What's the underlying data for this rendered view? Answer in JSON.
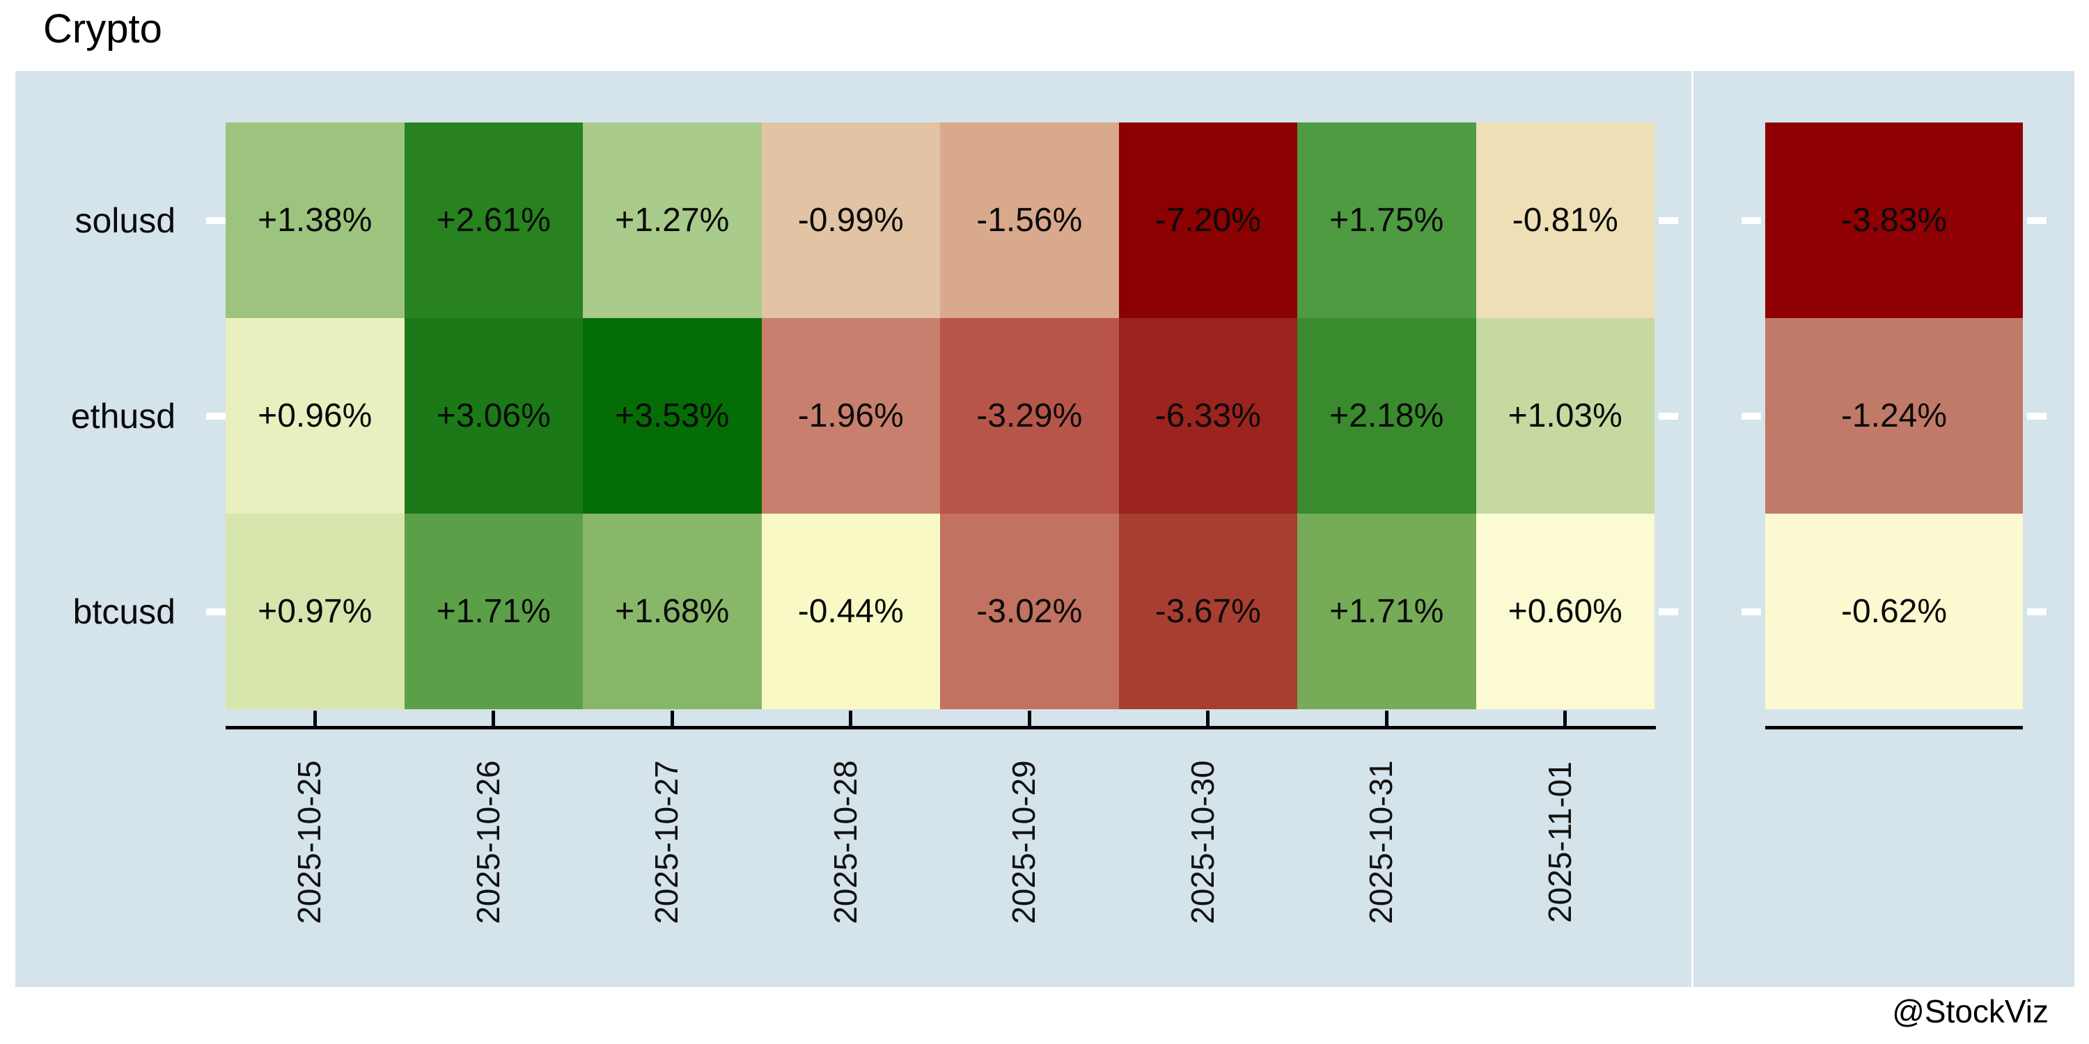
{
  "page": {
    "title": "Crypto",
    "footer": "@StockViz"
  },
  "chart_data": {
    "type": "heatmap",
    "title": "Crypto",
    "x_axis": {
      "tick_labels": [
        "2025-10-25",
        "2025-10-26",
        "2025-10-27",
        "2025-10-28",
        "2025-10-29",
        "2025-10-30",
        "2025-10-31",
        "2025-11-01"
      ],
      "label_rotation_deg": -90
    },
    "y_axis": {
      "tick_labels": [
        "solusd",
        "ethusd",
        "btcusd"
      ]
    },
    "cells": {
      "values_pct": [
        [
          1.38,
          2.61,
          1.27,
          -0.99,
          -1.56,
          -7.2,
          1.75,
          -0.81
        ],
        [
          0.96,
          3.06,
          3.53,
          -1.96,
          -3.29,
          -6.33,
          2.18,
          1.03
        ],
        [
          0.97,
          1.71,
          1.68,
          -0.44,
          -3.02,
          -3.67,
          1.71,
          0.6
        ]
      ],
      "labels": [
        [
          "+1.38%",
          "+2.61%",
          "+1.27%",
          "-0.99%",
          "-1.56%",
          "-7.20%",
          "+1.75%",
          "-0.81%"
        ],
        [
          "+0.96%",
          "+3.06%",
          "+3.53%",
          "-1.96%",
          "-3.29%",
          "-6.33%",
          "+2.18%",
          "+1.03%"
        ],
        [
          "+0.97%",
          "+1.71%",
          "+1.68%",
          "-0.44%",
          "-3.02%",
          "-3.67%",
          "+1.71%",
          "+0.60%"
        ]
      ],
      "colors": [
        [
          "#9cc47e",
          "#27821f",
          "#a9cb8b",
          "#e2c3a4",
          "#d9a98d",
          "#8b0000",
          "#4f9b41",
          "#eedfb6"
        ],
        [
          "#e9efbf",
          "#1b7a17",
          "#056d05",
          "#c97f6d",
          "#b85549",
          "#9c231e",
          "#3a8b2e",
          "#c5d9a1"
        ],
        [
          "#d7e6ac",
          "#5ba048",
          "#88b76a",
          "#f9f9c6",
          "#c27260",
          "#a83e31",
          "#76ac58",
          "#fbfad3"
        ]
      ]
    },
    "aggregate_column": {
      "values_pct": [
        -3.83,
        -1.24,
        -0.62
      ],
      "labels": [
        "-3.83%",
        "-1.24%",
        "-0.62%"
      ],
      "colors": [
        "#8e0003",
        "#c17a68",
        "#fcf9d0"
      ]
    },
    "style": {
      "panel_background": "#d5e3ea",
      "axis_color": "#000000",
      "cell_text_color": "#0a0a0a"
    },
    "layout_hints": {
      "grid": false,
      "cell_labels_shown": true,
      "aggregate_panel_position": "right"
    }
  }
}
